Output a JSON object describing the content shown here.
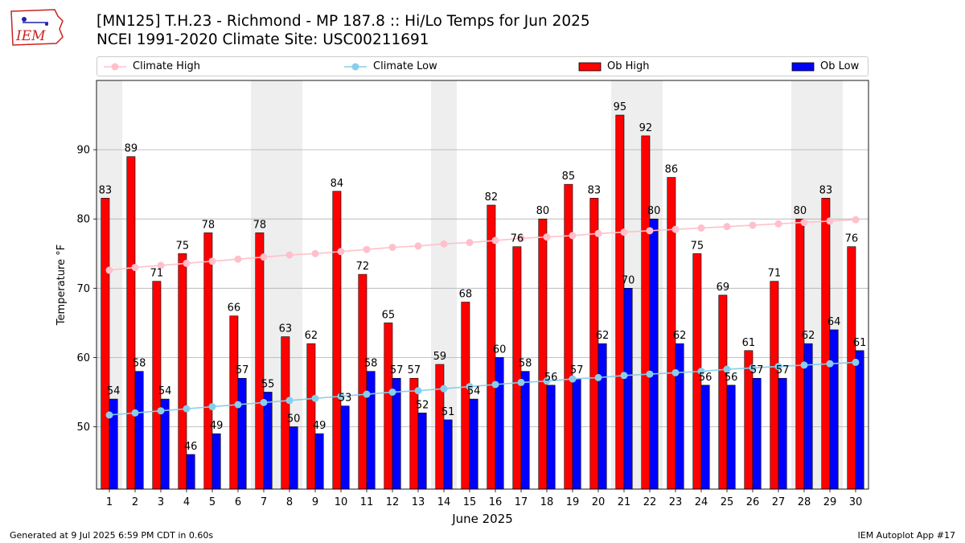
{
  "header": {
    "logo_text": "IEM",
    "title_line1": "[MN125] T.H.23 - Richmond - MP 187.8  :: Hi/Lo Temps for Jun 2025",
    "title_line2": "NCEI 1991-2020 Climate Site: USC00211691"
  },
  "footer": {
    "left": "Generated at 9 Jul 2025 6:59 PM CDT in 0.60s",
    "right": "IEM Autoplot App #17"
  },
  "colors": {
    "ob_high": "#ff0000",
    "ob_low": "#0000ff",
    "climate_high": "#ffc0cb",
    "climate_low": "#87ceeb",
    "weekend_shade": "#eeeeee",
    "grid": "#b0b0b0"
  },
  "chart_data": {
    "type": "bar",
    "xlabel": "June 2025",
    "ylabel": "Temperature °F",
    "ylim": [
      41,
      100
    ],
    "yticks": [
      50,
      60,
      70,
      80,
      90
    ],
    "grid": "horizontal",
    "legend_position": "top",
    "categories": [
      "1",
      "2",
      "3",
      "4",
      "5",
      "6",
      "7",
      "8",
      "9",
      "10",
      "11",
      "12",
      "13",
      "14",
      "15",
      "16",
      "17",
      "18",
      "19",
      "20",
      "21",
      "22",
      "23",
      "24",
      "25",
      "26",
      "27",
      "28",
      "29",
      "30"
    ],
    "shaded_days": [
      1,
      7,
      8,
      14,
      21,
      22,
      28,
      29
    ],
    "series": [
      {
        "name": "Ob High",
        "kind": "bar",
        "values": [
          83,
          89,
          71,
          75,
          78,
          66,
          78,
          63,
          62,
          84,
          72,
          65,
          57,
          59,
          68,
          82,
          76,
          80,
          85,
          83,
          95,
          92,
          86,
          75,
          69,
          61,
          71,
          80,
          83,
          76
        ]
      },
      {
        "name": "Ob Low",
        "kind": "bar",
        "values": [
          54,
          58,
          54,
          46,
          49,
          57,
          55,
          50,
          49,
          53,
          58,
          57,
          52,
          51,
          54,
          60,
          58,
          56,
          57,
          62,
          70,
          80,
          62,
          56,
          56,
          57,
          57,
          62,
          64,
          61
        ]
      },
      {
        "name": "Climate High",
        "kind": "line",
        "values": [
          72.6,
          73.0,
          73.3,
          73.6,
          73.9,
          74.2,
          74.5,
          74.8,
          75.0,
          75.3,
          75.6,
          75.9,
          76.1,
          76.4,
          76.6,
          76.9,
          77.2,
          77.4,
          77.6,
          77.9,
          78.1,
          78.3,
          78.5,
          78.7,
          78.9,
          79.1,
          79.3,
          79.5,
          79.7,
          79.9
        ]
      },
      {
        "name": "Climate Low",
        "kind": "line",
        "values": [
          51.7,
          52.0,
          52.3,
          52.6,
          52.9,
          53.2,
          53.5,
          53.8,
          54.1,
          54.4,
          54.7,
          55.0,
          55.2,
          55.5,
          55.8,
          56.1,
          56.4,
          56.6,
          56.9,
          57.1,
          57.4,
          57.6,
          57.8,
          58.0,
          58.3,
          58.5,
          58.7,
          58.9,
          59.1,
          59.3
        ]
      }
    ]
  }
}
